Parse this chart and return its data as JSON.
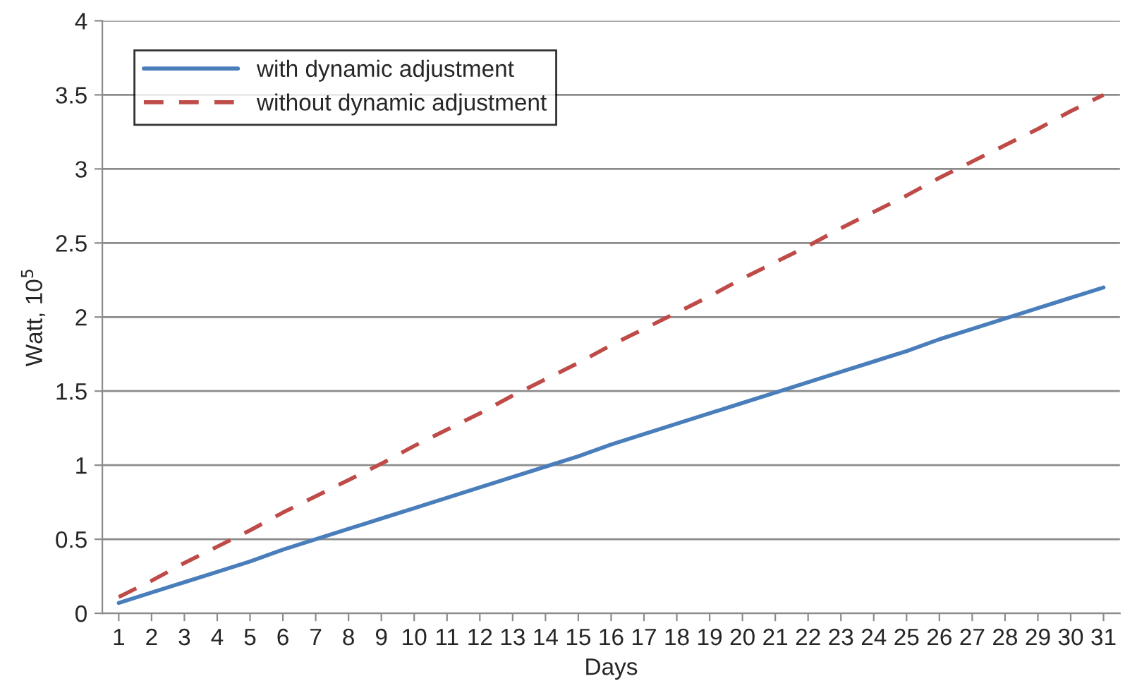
{
  "chart_data": {
    "type": "line",
    "xlabel": "Days",
    "ylabel": "Watt, 10$^{5}$",
    "categories": [
      "1",
      "2",
      "3",
      "4",
      "5",
      "6",
      "7",
      "8",
      "9",
      "10",
      "11",
      "12",
      "13",
      "14",
      "15",
      "16",
      "17",
      "18",
      "19",
      "20",
      "21",
      "22",
      "23",
      "24",
      "25",
      "26",
      "27",
      "28",
      "29",
      "30",
      "31"
    ],
    "series": [
      {
        "name": "with dynamic adjustment",
        "color": "#4a7ebb",
        "line_style": "solid",
        "values": [
          0.07,
          0.14,
          0.21,
          0.28,
          0.35,
          0.43,
          0.5,
          0.57,
          0.64,
          0.71,
          0.78,
          0.85,
          0.92,
          0.99,
          1.06,
          1.14,
          1.21,
          1.28,
          1.35,
          1.42,
          1.49,
          1.56,
          1.63,
          1.7,
          1.77,
          1.85,
          1.92,
          1.99,
          2.06,
          2.13,
          2.2
        ]
      },
      {
        "name": "without dynamic adjustment",
        "color": "#be4b48",
        "line_style": "dashed",
        "values": [
          0.11,
          0.22,
          0.34,
          0.45,
          0.56,
          0.68,
          0.79,
          0.9,
          1.01,
          1.13,
          1.24,
          1.35,
          1.47,
          1.58,
          1.69,
          1.81,
          1.92,
          2.03,
          2.14,
          2.26,
          2.37,
          2.48,
          2.6,
          2.71,
          2.82,
          2.94,
          3.05,
          3.16,
          3.27,
          3.39,
          3.5
        ]
      }
    ],
    "ylim": [
      0,
      4
    ],
    "yticks": [
      0,
      0.5,
      1,
      1.5,
      2,
      2.5,
      3,
      3.5,
      4
    ],
    "grid": "y",
    "legend": "top left",
    "marker": "none"
  }
}
